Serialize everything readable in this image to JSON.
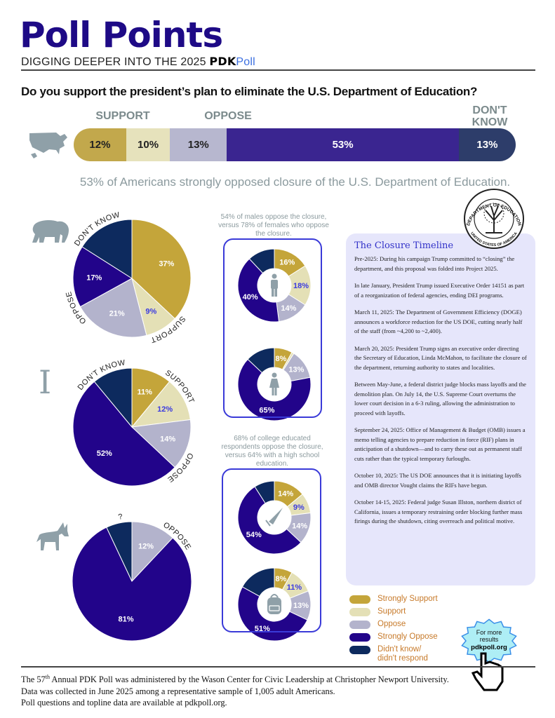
{
  "header": {
    "title": "Poll Points",
    "subtitle_prefix": "DIGGING DEEPER INTO THE 2025",
    "subtitle_brand": "PDK",
    "subtitle_brand2": "Poll"
  },
  "question": "Do you support the president’s plan to eliminate the U.S. Department of Education?",
  "colors": {
    "strongly_support": "#c4a53a",
    "support": "#e4e0b6",
    "oppose": "#b3b3cc",
    "strongly_oppose": "#22048a",
    "dont_know": "#0d2a5e",
    "accent": "#3a3ad8",
    "legend_text": "#c77a2a"
  },
  "caption": "53% of Americans strongly opposed closure of the U.S. Department of Education.",
  "chart_data": [
    {
      "type": "bar",
      "name": "overall",
      "stacked": true,
      "group_labels": [
        "SUPPORT",
        "OPPOSE",
        "DON'T KNOW"
      ],
      "categories": [
        "Strongly Support",
        "Support",
        "Oppose",
        "Strongly Oppose",
        "Didn't know/didn't respond"
      ],
      "values": [
        12,
        10,
        13,
        53,
        13
      ],
      "labels": [
        "12%",
        "10%",
        "13%",
        "53%",
        "13%"
      ]
    },
    {
      "type": "pie",
      "name": "republicans",
      "icon": "elephant-icon",
      "outer_labels": [
        "DON'T KNOW",
        "SUPPORT",
        "OPPOSE"
      ],
      "values": [
        37,
        9,
        21,
        17,
        16
      ],
      "labels": [
        "37%",
        "9%",
        "21%",
        "17%",
        null
      ]
    },
    {
      "type": "pie",
      "name": "independents",
      "icon": "independent-i-icon",
      "icon_text": "I",
      "outer_labels": [
        "DON'T KNOW",
        "SUPPORT",
        "OPPOSE"
      ],
      "values": [
        11,
        12,
        14,
        52,
        11
      ],
      "labels": [
        "11%",
        "12%",
        "14%",
        "52%",
        null
      ]
    },
    {
      "type": "pie",
      "name": "democrats",
      "icon": "donkey-icon",
      "outer_labels": [
        "?",
        "OPPOSE"
      ],
      "values": [
        0,
        0,
        12,
        81,
        7
      ],
      "labels": [
        null,
        null,
        "12%",
        "81%",
        null
      ]
    },
    {
      "type": "donut",
      "name": "males",
      "icon": "male-icon",
      "caption": "54% of males oppose the closure, versus 78% of females who oppose the closure.",
      "values": [
        16,
        18,
        14,
        40,
        12
      ],
      "labels": [
        "16%",
        "18%",
        "14%",
        "40%",
        null
      ]
    },
    {
      "type": "donut",
      "name": "females",
      "icon": "female-icon",
      "values": [
        8,
        1,
        13,
        65,
        13
      ],
      "labels": [
        "8%",
        null,
        "13%",
        "65%",
        null
      ]
    },
    {
      "type": "donut",
      "name": "college",
      "icon": "graduation-cap-icon",
      "caption": "68% of college educated respondents oppose the closure, versus 64% with a high school education.",
      "values": [
        14,
        9,
        14,
        54,
        9
      ],
      "labels": [
        "14%",
        "9%",
        "14%",
        "54%",
        null
      ]
    },
    {
      "type": "donut",
      "name": "high-school",
      "icon": "backpack-icon",
      "values": [
        8,
        11,
        13,
        51,
        17
      ],
      "labels": [
        "8%",
        "11%",
        "13%",
        "51%",
        null
      ]
    }
  ],
  "timeline": {
    "title": "The Closure Timeline",
    "items": [
      "Pre-2025: During his campaign Trump committed to “closing” the department, and this proposal was folded into Project 2025.",
      "In late January, President Trump issued Executive Order 14151 as part of a reorganization of federal agencies, ending DEI programs.",
      "March 11, 2025: The Department of Government Efficiency (DOGE) announces a workforce reduction for the US DOE, cutting nearly half of the staff (from ~4,200 to ~2,400).",
      "March 20, 2025: President Trump signs an executive order directing the Secretary of Education, Linda McMahon, to facilitate the closure of the department, returning authority to states and localities.",
      "Between May-June, a federal district judge blocks mass layoffs and the demolition plan. On July 14, the U.S. Supreme Court overturns the lower court decision in a 6-3 ruling, allowing the administration to proceed with layoffs.",
      "September 24, 2025: Office of Management & Budget (OMB) issues a memo telling agencies to prepare reduction in force (RIF) plans in anticipation of a shutdown—and to carry these out as permanent staff cuts rather than the typical temporary furloughs.",
      "October 10, 2025: The US DOE announces that it is initiating layoffs and OMB director Vought claims the RIFs have begun.",
      "October 14-15, 2025: Federal judge Susan Illston, northern district of California, issues a temporary restraining order blocking further mass firings during the shutdown, citing overreach and political motive."
    ]
  },
  "seal": {
    "top": "DEPARTMENT OF EDUCATION",
    "bottom": "UNITED STATES OF AMERICA"
  },
  "legend": [
    "Strongly Support",
    "Support",
    "Oppose",
    "Strongly Oppose",
    "Didn't know/ didn't respond"
  ],
  "cta": {
    "line1": "For more",
    "line2": "results",
    "link": "pdkpoll.org"
  },
  "footer": {
    "line1_a": "The 57",
    "line1_sup": "th",
    "line1_b": " Annual PDK Poll was administered by the Wason Center for Civic Leadership at Christopher Newport University.",
    "line2": "Data was collected in June 2025 among a representative sample of 1,005 adult Americans.",
    "line3": "Poll questions and topline data are available at pdkpoll.org."
  }
}
